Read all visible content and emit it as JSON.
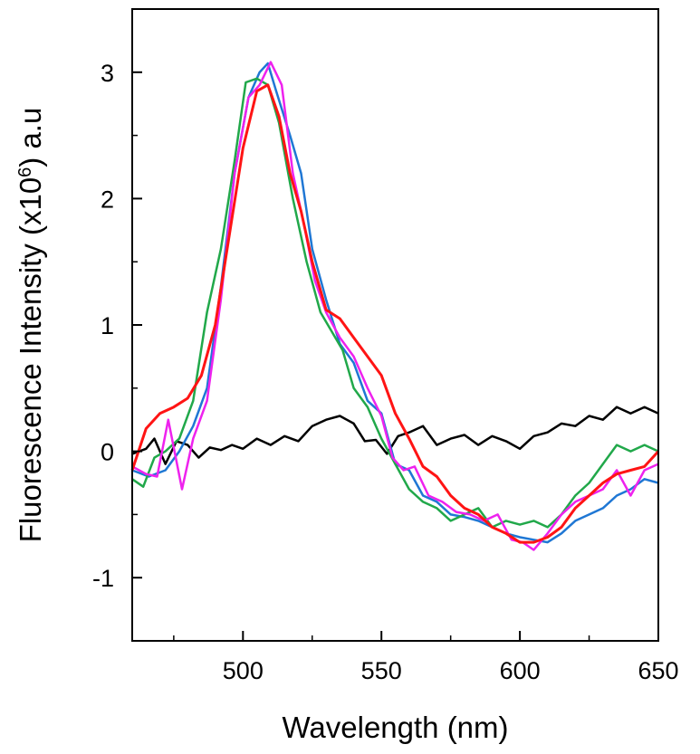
{
  "chart_data": {
    "type": "line",
    "title": "",
    "xlabel": "Wavelength (nm)",
    "ylabel": {
      "prefix": "Fluorescence Intensity (x10",
      "superscript": "6",
      "suffix": ") a.u"
    },
    "xlim": [
      460,
      650
    ],
    "ylim": [
      -1.5,
      3.5
    ],
    "xticks": [
      500,
      550,
      600,
      650
    ],
    "yticks": [
      -1,
      0,
      1,
      2,
      3
    ],
    "x_tick_labels": [
      "500",
      "550",
      "600",
      "650"
    ],
    "y_tick_labels": [
      "-1",
      "0",
      "1",
      "2",
      "3"
    ],
    "grid": false,
    "legend": "none",
    "series": [
      {
        "color": "#000000",
        "points": [
          [
            460,
            -0.02
          ],
          [
            465,
            0.02
          ],
          [
            468,
            0.1
          ],
          [
            472,
            -0.1
          ],
          [
            476,
            0.08
          ],
          [
            480,
            0.05
          ],
          [
            484,
            -0.05
          ],
          [
            488,
            0.03
          ],
          [
            492,
            0.01
          ],
          [
            496,
            0.05
          ],
          [
            500,
            0.02
          ],
          [
            505,
            0.1
          ],
          [
            510,
            0.05
          ],
          [
            515,
            0.12
          ],
          [
            520,
            0.08
          ],
          [
            525,
            0.2
          ],
          [
            530,
            0.25
          ],
          [
            535,
            0.28
          ],
          [
            540,
            0.22
          ],
          [
            544,
            0.08
          ],
          [
            548,
            0.09
          ],
          [
            552,
            -0.02
          ],
          [
            556,
            0.12
          ],
          [
            560,
            0.15
          ],
          [
            565,
            0.2
          ],
          [
            570,
            0.05
          ],
          [
            575,
            0.1
          ],
          [
            580,
            0.13
          ],
          [
            585,
            0.05
          ],
          [
            590,
            0.12
          ],
          [
            595,
            0.08
          ],
          [
            600,
            0.02
          ],
          [
            605,
            0.12
          ],
          [
            610,
            0.15
          ],
          [
            615,
            0.22
          ],
          [
            620,
            0.2
          ],
          [
            625,
            0.28
          ],
          [
            630,
            0.25
          ],
          [
            635,
            0.35
          ],
          [
            640,
            0.3
          ],
          [
            645,
            0.35
          ],
          [
            650,
            0.3
          ]
        ]
      },
      {
        "color": "#1f77d4",
        "points": [
          [
            460,
            -0.15
          ],
          [
            466,
            -0.2
          ],
          [
            472,
            -0.15
          ],
          [
            477,
            0.0
          ],
          [
            482,
            0.2
          ],
          [
            487,
            0.5
          ],
          [
            492,
            1.3
          ],
          [
            497,
            2.2
          ],
          [
            502,
            2.8
          ],
          [
            506,
            3.0
          ],
          [
            509,
            3.07
          ],
          [
            512,
            2.85
          ],
          [
            517,
            2.5
          ],
          [
            521,
            2.2
          ],
          [
            525,
            1.6
          ],
          [
            530,
            1.2
          ],
          [
            535,
            0.85
          ],
          [
            540,
            0.7
          ],
          [
            545,
            0.4
          ],
          [
            550,
            0.3
          ],
          [
            555,
            -0.1
          ],
          [
            560,
            -0.15
          ],
          [
            565,
            -0.35
          ],
          [
            570,
            -0.4
          ],
          [
            575,
            -0.5
          ],
          [
            580,
            -0.52
          ],
          [
            585,
            -0.55
          ],
          [
            590,
            -0.6
          ],
          [
            595,
            -0.65
          ],
          [
            600,
            -0.68
          ],
          [
            605,
            -0.7
          ],
          [
            610,
            -0.72
          ],
          [
            615,
            -0.65
          ],
          [
            620,
            -0.55
          ],
          [
            625,
            -0.5
          ],
          [
            630,
            -0.45
          ],
          [
            635,
            -0.35
          ],
          [
            640,
            -0.3
          ],
          [
            645,
            -0.22
          ],
          [
            650,
            -0.25
          ]
        ]
      },
      {
        "color": "#21a84a",
        "points": [
          [
            460,
            -0.22
          ],
          [
            464,
            -0.28
          ],
          [
            468,
            -0.05
          ],
          [
            472,
            0.0
          ],
          [
            477,
            0.1
          ],
          [
            482,
            0.4
          ],
          [
            487,
            1.1
          ],
          [
            492,
            1.6
          ],
          [
            497,
            2.3
          ],
          [
            501,
            2.92
          ],
          [
            505,
            2.95
          ],
          [
            509,
            2.9
          ],
          [
            513,
            2.6
          ],
          [
            518,
            2.0
          ],
          [
            523,
            1.5
          ],
          [
            528,
            1.1
          ],
          [
            532,
            0.95
          ],
          [
            536,
            0.8
          ],
          [
            540,
            0.5
          ],
          [
            545,
            0.35
          ],
          [
            550,
            0.1
          ],
          [
            555,
            -0.1
          ],
          [
            560,
            -0.3
          ],
          [
            565,
            -0.4
          ],
          [
            570,
            -0.45
          ],
          [
            575,
            -0.55
          ],
          [
            580,
            -0.5
          ],
          [
            585,
            -0.45
          ],
          [
            590,
            -0.6
          ],
          [
            595,
            -0.55
          ],
          [
            600,
            -0.58
          ],
          [
            605,
            -0.55
          ],
          [
            610,
            -0.6
          ],
          [
            615,
            -0.5
          ],
          [
            620,
            -0.35
          ],
          [
            625,
            -0.25
          ],
          [
            630,
            -0.1
          ],
          [
            635,
            0.05
          ],
          [
            640,
            0.0
          ],
          [
            645,
            0.05
          ],
          [
            650,
            0.0
          ]
        ]
      },
      {
        "color": "#ee22ee",
        "points": [
          [
            460,
            -0.12
          ],
          [
            465,
            -0.18
          ],
          [
            469,
            -0.2
          ],
          [
            473,
            0.25
          ],
          [
            478,
            -0.3
          ],
          [
            482,
            0.1
          ],
          [
            487,
            0.4
          ],
          [
            492,
            1.2
          ],
          [
            497,
            2.2
          ],
          [
            502,
            2.8
          ],
          [
            506,
            2.9
          ],
          [
            510,
            3.08
          ],
          [
            514,
            2.9
          ],
          [
            518,
            2.2
          ],
          [
            522,
            1.8
          ],
          [
            526,
            1.35
          ],
          [
            530,
            1.1
          ],
          [
            535,
            0.9
          ],
          [
            540,
            0.75
          ],
          [
            545,
            0.5
          ],
          [
            550,
            0.28
          ],
          [
            554,
            -0.05
          ],
          [
            558,
            -0.15
          ],
          [
            562,
            -0.12
          ],
          [
            567,
            -0.35
          ],
          [
            572,
            -0.4
          ],
          [
            577,
            -0.48
          ],
          [
            582,
            -0.5
          ],
          [
            587,
            -0.55
          ],
          [
            592,
            -0.5
          ],
          [
            597,
            -0.7
          ],
          [
            601,
            -0.72
          ],
          [
            605,
            -0.78
          ],
          [
            610,
            -0.65
          ],
          [
            615,
            -0.5
          ],
          [
            620,
            -0.4
          ],
          [
            625,
            -0.35
          ],
          [
            630,
            -0.3
          ],
          [
            635,
            -0.15
          ],
          [
            640,
            -0.35
          ],
          [
            645,
            -0.15
          ],
          [
            650,
            -0.1
          ]
        ]
      },
      {
        "color": "#ff1414",
        "points": [
          [
            460,
            -0.15
          ],
          [
            465,
            0.18
          ],
          [
            470,
            0.3
          ],
          [
            475,
            0.35
          ],
          [
            480,
            0.42
          ],
          [
            485,
            0.6
          ],
          [
            490,
            1.0
          ],
          [
            495,
            1.7
          ],
          [
            500,
            2.4
          ],
          [
            505,
            2.85
          ],
          [
            509,
            2.9
          ],
          [
            513,
            2.65
          ],
          [
            517,
            2.2
          ],
          [
            521,
            1.9
          ],
          [
            525,
            1.5
          ],
          [
            530,
            1.12
          ],
          [
            535,
            1.05
          ],
          [
            540,
            0.9
          ],
          [
            545,
            0.75
          ],
          [
            550,
            0.6
          ],
          [
            555,
            0.3
          ],
          [
            560,
            0.1
          ],
          [
            565,
            -0.12
          ],
          [
            570,
            -0.2
          ],
          [
            575,
            -0.35
          ],
          [
            580,
            -0.45
          ],
          [
            585,
            -0.5
          ],
          [
            590,
            -0.6
          ],
          [
            595,
            -0.65
          ],
          [
            600,
            -0.72
          ],
          [
            605,
            -0.72
          ],
          [
            610,
            -0.68
          ],
          [
            615,
            -0.6
          ],
          [
            620,
            -0.45
          ],
          [
            625,
            -0.35
          ],
          [
            630,
            -0.25
          ],
          [
            635,
            -0.18
          ],
          [
            640,
            -0.15
          ],
          [
            645,
            -0.12
          ],
          [
            650,
            0.0
          ]
        ]
      }
    ]
  }
}
